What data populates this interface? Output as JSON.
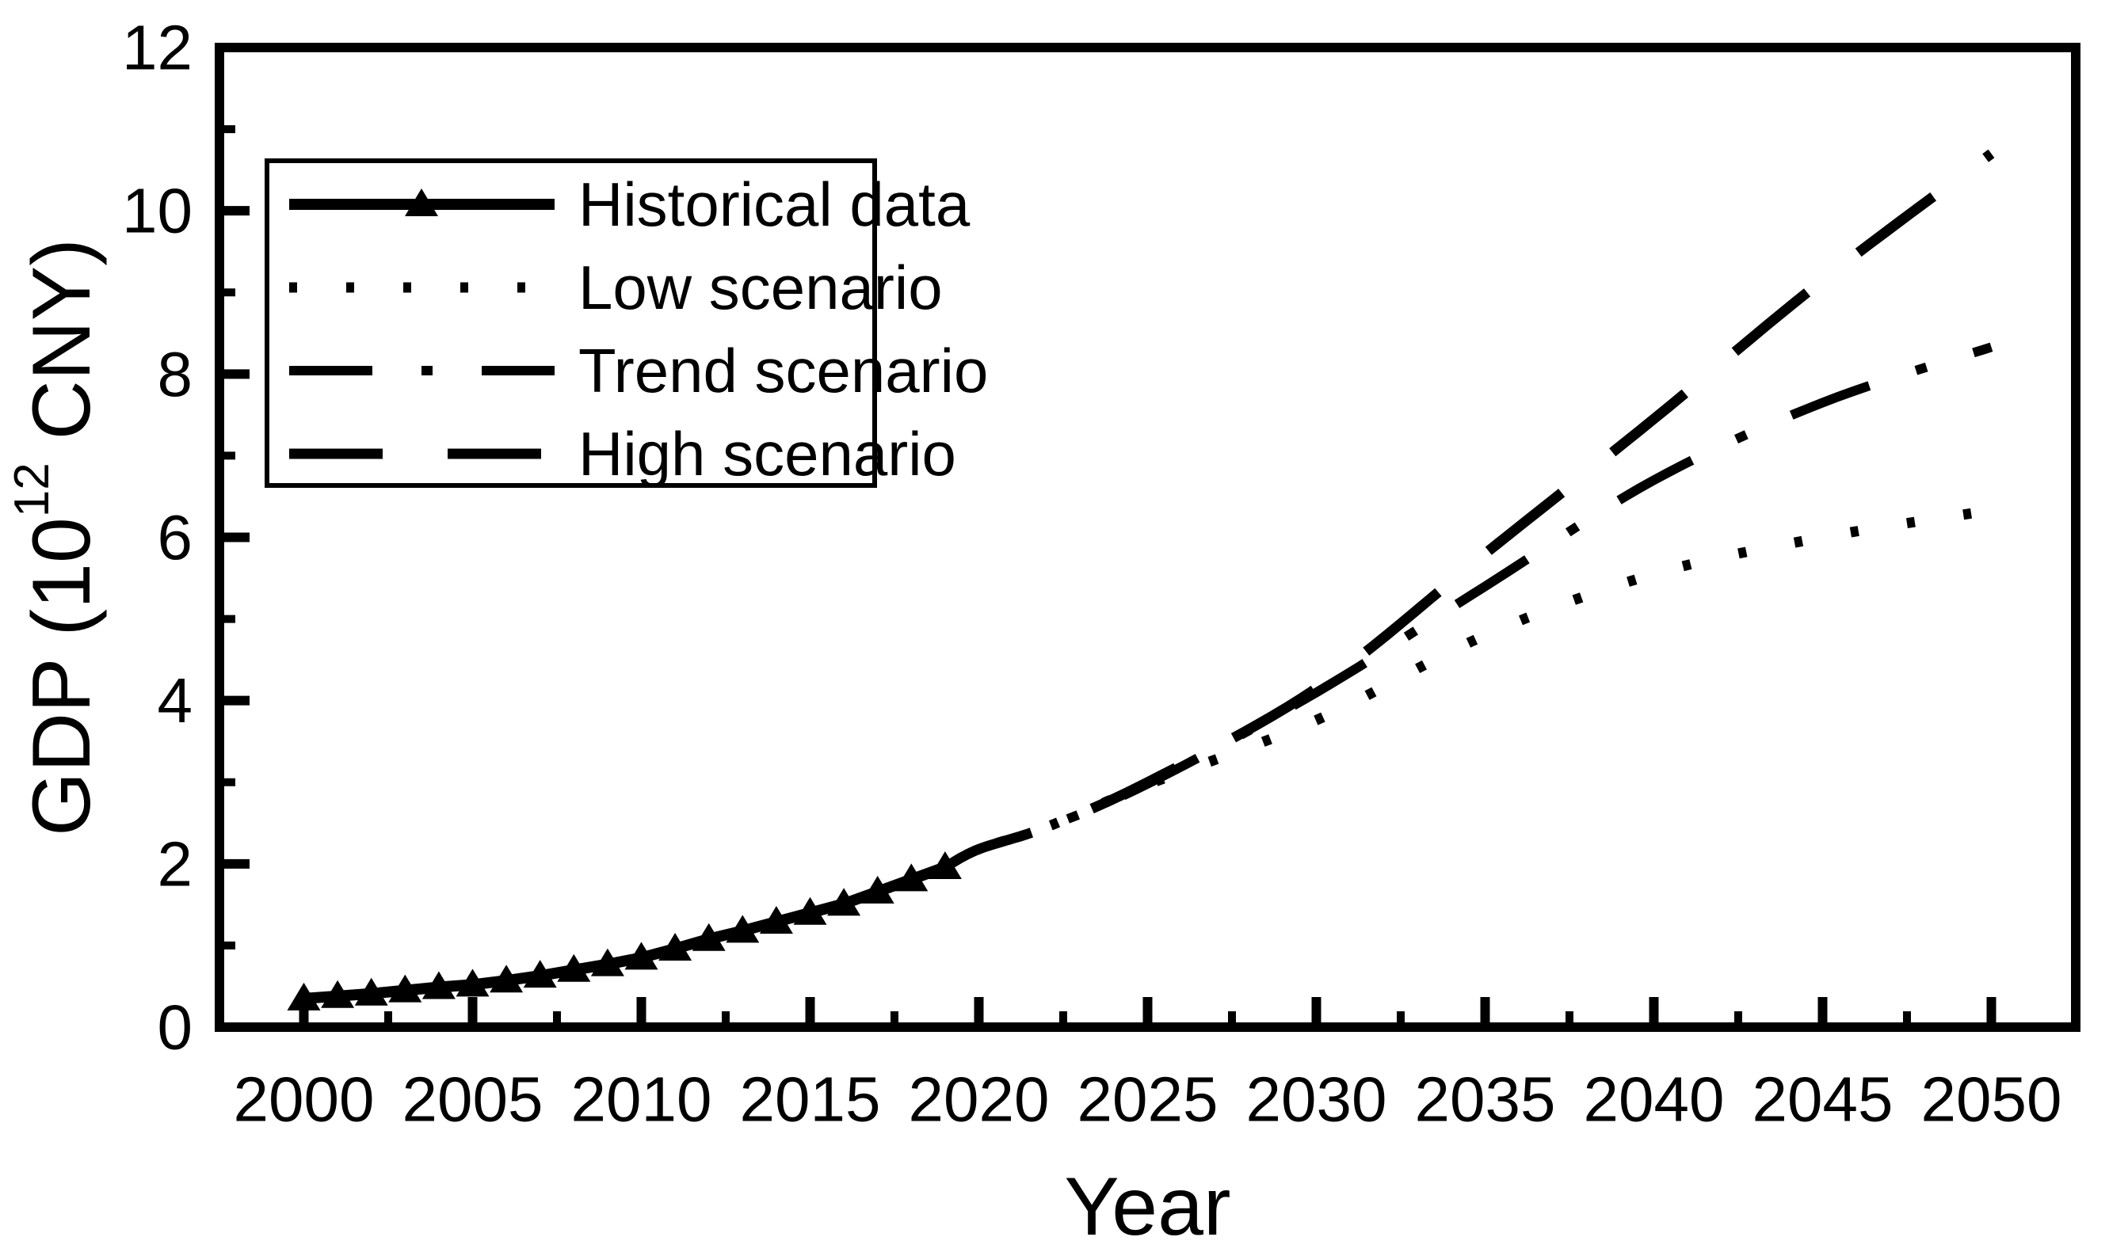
{
  "figure": {
    "background": "#ffffff",
    "ink_color": "#000000"
  },
  "chart_data": {
    "type": "line",
    "title": "",
    "xlabel": "Year",
    "ylabel": "GDP (10^12 CNY)",
    "ylabel_parts": {
      "prefix": "GDP (10",
      "superscript": "12",
      "suffix": " CNY)"
    },
    "xlim": [
      1997.5,
      2052.5
    ],
    "ylim": [
      0,
      12
    ],
    "x_ticks_major": [
      2000,
      2005,
      2010,
      2015,
      2020,
      2025,
      2030,
      2035,
      2040,
      2045,
      2050
    ],
    "x_ticks_minor": [
      2002.5,
      2007.5,
      2012.5,
      2017.5,
      2022.5,
      2027.5,
      2032.5,
      2037.5,
      2042.5,
      2047.5
    ],
    "y_ticks_major": [
      0,
      2,
      4,
      6,
      8,
      10,
      12
    ],
    "y_ticks_minor": [
      1,
      3,
      5,
      7,
      9,
      11
    ],
    "x_tick_labels": [
      "2000",
      "2005",
      "2010",
      "2015",
      "2020",
      "2025",
      "2030",
      "2035",
      "2040",
      "2045",
      "2050"
    ],
    "y_tick_labels": [
      "0",
      "2",
      "4",
      "6",
      "8",
      "10",
      "12"
    ],
    "grid": false,
    "legend_position": "upper-left",
    "series": [
      {
        "name": "Historical data",
        "line_style": "solid",
        "marker": "triangle",
        "x": [
          2000,
          2001,
          2002,
          2003,
          2004,
          2005,
          2006,
          2007,
          2008,
          2009,
          2010,
          2011,
          2012,
          2013,
          2014,
          2015,
          2016,
          2017,
          2018,
          2019
        ],
        "values": [
          0.35,
          0.38,
          0.41,
          0.45,
          0.49,
          0.52,
          0.57,
          0.63,
          0.7,
          0.77,
          0.85,
          0.96,
          1.08,
          1.18,
          1.29,
          1.4,
          1.51,
          1.66,
          1.81,
          1.96
        ]
      },
      {
        "name": "Low scenario",
        "line_style": "dotted",
        "marker": "none",
        "x": [
          2019,
          2020,
          2022,
          2025,
          2030,
          2035,
          2040,
          2045,
          2050
        ],
        "values": [
          1.96,
          2.18,
          2.45,
          2.97,
          3.76,
          4.8,
          5.55,
          6.0,
          6.33
        ]
      },
      {
        "name": "Trend scenario",
        "line_style": "dashdot",
        "marker": "none",
        "x": [
          2019,
          2020,
          2022,
          2025,
          2030,
          2035,
          2040,
          2045,
          2050
        ],
        "values": [
          1.96,
          2.18,
          2.45,
          2.98,
          4.1,
          5.4,
          6.7,
          7.65,
          8.33
        ]
      },
      {
        "name": "High scenario",
        "line_style": "dashed",
        "marker": "none",
        "x": [
          2019,
          2020,
          2022,
          2025,
          2030,
          2035,
          2040,
          2045,
          2050
        ],
        "values": [
          1.96,
          2.18,
          2.45,
          3.0,
          4.15,
          5.8,
          7.45,
          9.15,
          10.7
        ]
      }
    ],
    "legend": [
      {
        "label": "Historical data"
      },
      {
        "label": "Low scenario"
      },
      {
        "label": "Trend scenario"
      },
      {
        "label": "High scenario"
      }
    ]
  }
}
